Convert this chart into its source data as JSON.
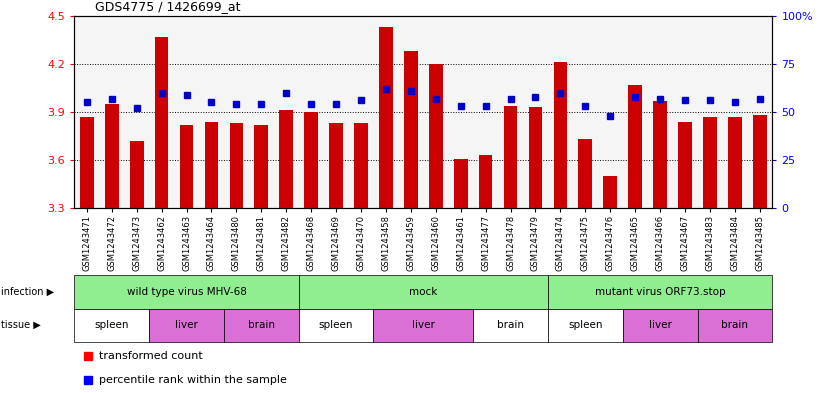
{
  "title": "GDS4775 / 1426699_at",
  "sample_ids": [
    "GSM1243471",
    "GSM1243472",
    "GSM1243473",
    "GSM1243462",
    "GSM1243463",
    "GSM1243464",
    "GSM1243480",
    "GSM1243481",
    "GSM1243482",
    "GSM1243468",
    "GSM1243469",
    "GSM1243470",
    "GSM1243458",
    "GSM1243459",
    "GSM1243460",
    "GSM1243461",
    "GSM1243477",
    "GSM1243478",
    "GSM1243479",
    "GSM1243474",
    "GSM1243475",
    "GSM1243476",
    "GSM1243465",
    "GSM1243466",
    "GSM1243467",
    "GSM1243483",
    "GSM1243484",
    "GSM1243485"
  ],
  "bar_values": [
    3.87,
    3.95,
    3.72,
    4.37,
    3.82,
    3.84,
    3.83,
    3.82,
    3.91,
    3.9,
    3.83,
    3.83,
    4.43,
    4.28,
    4.2,
    3.61,
    3.63,
    3.94,
    3.93,
    4.21,
    3.73,
    3.5,
    4.07,
    3.97,
    3.84,
    3.87,
    3.87,
    3.88
  ],
  "percentile_values": [
    55,
    57,
    52,
    60,
    59,
    55,
    54,
    54,
    60,
    54,
    54,
    56,
    62,
    61,
    57,
    53,
    53,
    57,
    58,
    60,
    53,
    48,
    58,
    57,
    56,
    56,
    55,
    57
  ],
  "ylim_left": [
    3.3,
    4.5
  ],
  "ylim_right": [
    0,
    100
  ],
  "yticks_left": [
    3.3,
    3.6,
    3.9,
    4.2,
    4.5
  ],
  "yticks_right": [
    0,
    25,
    50,
    75,
    100
  ],
  "bar_color": "#cc0000",
  "dot_color": "#0000cc",
  "bar_width": 0.55,
  "infection_groups": [
    {
      "label": "wild type virus MHV-68",
      "start": 0,
      "end": 9,
      "color": "#90ee90"
    },
    {
      "label": "mock",
      "start": 9,
      "end": 19,
      "color": "#90ee90"
    },
    {
      "label": "mutant virus ORF73.stop",
      "start": 19,
      "end": 28,
      "color": "#90ee90"
    }
  ],
  "tissue_labels": [
    {
      "label": "spleen",
      "start": 0,
      "end": 3,
      "color": "#ffffff"
    },
    {
      "label": "liver",
      "start": 3,
      "end": 6,
      "color": "#da70d6"
    },
    {
      "label": "brain",
      "start": 6,
      "end": 9,
      "color": "#da70d6"
    },
    {
      "label": "spleen",
      "start": 9,
      "end": 12,
      "color": "#ffffff"
    },
    {
      "label": "liver",
      "start": 12,
      "end": 16,
      "color": "#da70d6"
    },
    {
      "label": "brain",
      "start": 16,
      "end": 19,
      "color": "#ffffff"
    },
    {
      "label": "spleen",
      "start": 19,
      "end": 22,
      "color": "#ffffff"
    },
    {
      "label": "liver",
      "start": 22,
      "end": 25,
      "color": "#da70d6"
    },
    {
      "label": "brain",
      "start": 25,
      "end": 28,
      "color": "#da70d6"
    }
  ],
  "bg_color": "#f0f0f0"
}
